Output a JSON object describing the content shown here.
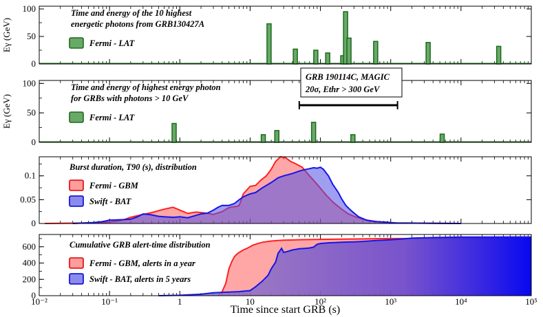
{
  "chart_data": {
    "type": "multi-panel",
    "shared_x": {
      "label": "Time since start GRB (s)",
      "scale": "log",
      "range": [
        0.01,
        100000
      ],
      "tick_labels": [
        "10⁻²",
        "10⁻¹",
        "1",
        "10",
        "10²",
        "10³",
        "10⁴",
        "10⁵"
      ]
    },
    "panels": [
      {
        "id": "p1",
        "type": "bar",
        "ylabel": "Eγ (GeV)",
        "ylim": [
          0,
          105
        ],
        "yticks": [
          0,
          50,
          100
        ],
        "title_lines": [
          "Time and energy of the 10 highest",
          "energetic photons from GRB130427A"
        ],
        "legend": [
          {
            "label": "Fermi - LAT",
            "color": "#6aa86a"
          }
        ],
        "bars": [
          {
            "t": 18.6,
            "e": 73
          },
          {
            "t": 44,
            "e": 27
          },
          {
            "t": 86,
            "e": 25
          },
          {
            "t": 127,
            "e": 20
          },
          {
            "t": 208,
            "e": 15
          },
          {
            "t": 228,
            "e": 95
          },
          {
            "t": 255,
            "e": 47
          },
          {
            "t": 611,
            "e": 41
          },
          {
            "t": 3410,
            "e": 39
          },
          {
            "t": 34400,
            "e": 32
          }
        ]
      },
      {
        "id": "p2",
        "type": "bar",
        "ylabel": "Eγ (GeV)",
        "ylim": [
          0,
          105
        ],
        "yticks": [
          0,
          50,
          100
        ],
        "title_lines": [
          "Time and energy of highest energy photon",
          "for GRBs with photons > 10 GeV"
        ],
        "legend": [
          {
            "label": "Fermi - LAT",
            "color": "#6aa86a"
          }
        ],
        "bars": [
          {
            "t": 0.83,
            "e": 32
          },
          {
            "t": 15.4,
            "e": 13
          },
          {
            "t": 24,
            "e": 20
          },
          {
            "t": 80,
            "e": 34
          },
          {
            "t": 290,
            "e": 13
          },
          {
            "t": 5400,
            "e": 14
          }
        ],
        "annotation": {
          "lines": [
            "GRB 190114C, MAGIC",
            "20σ, Ethr > 300 GeV"
          ],
          "range": [
            50,
            1250
          ],
          "e": 63
        }
      },
      {
        "id": "p3",
        "type": "area",
        "ylabel": "",
        "ylim": [
          0,
          0.14
        ],
        "yticks": [
          0,
          0.05,
          0.1
        ],
        "ytick_labels": [
          "0",
          "0.05",
          "0.1"
        ],
        "title": "Burst duration, T90 (s), distribution",
        "legend": [
          {
            "label": "Fermi - GBM",
            "color": "#ff4545"
          },
          {
            "label": "Swift - BAT",
            "color": "#4a4ae8"
          }
        ],
        "series": [
          {
            "name": "Fermi - GBM",
            "color": "#ff2020",
            "fill": "rgba(255,80,80,0.5)",
            "x": [
              0.012,
              0.05,
              0.08,
              0.1,
              0.13,
              0.16,
              0.2,
              0.28,
              0.4,
              0.6,
              0.8,
              1,
              1.3,
              1.7,
              2.3,
              3,
              4,
              4.8,
              5.5,
              6.5,
              7,
              8,
              10,
              12,
              14,
              17,
              20,
              23,
              27,
              32,
              38,
              45,
              55,
              70,
              90,
              120,
              150,
              200,
              250,
              300,
              400,
              500,
              800,
              1200,
              10000
            ],
            "y": [
              0,
              0.001,
              0.002,
              0.003,
              0.005,
              0.008,
              0.013,
              0.018,
              0.023,
              0.03,
              0.034,
              0.028,
              0.021,
              0.024,
              0.022,
              0.019,
              0.025,
              0.032,
              0.035,
              0.036,
              0.038,
              0.062,
              0.078,
              0.08,
              0.09,
              0.1,
              0.114,
              0.13,
              0.14,
              0.138,
              0.13,
              0.125,
              0.118,
              0.1,
              0.082,
              0.06,
              0.045,
              0.03,
              0.02,
              0.015,
              0.009,
              0.006,
              0.002,
              0.001,
              0
            ]
          },
          {
            "name": "Swift - BAT",
            "color": "#1515e6",
            "fill": "rgba(80,80,230,0.55)",
            "x": [
              0.03,
              0.06,
              0.08,
              0.1,
              0.15,
              0.2,
              0.25,
              0.3,
              0.35,
              0.4,
              0.5,
              0.6,
              0.8,
              1,
              1.3,
              1.7,
              2,
              2.5,
              3,
              3.5,
              4,
              5,
              6,
              7,
              8,
              10,
              12,
              15,
              20,
              25,
              30,
              40,
              50,
              60,
              70,
              80,
              90,
              100,
              110,
              130,
              150,
              180,
              200,
              230,
              260,
              300,
              350,
              450,
              600,
              800,
              1200,
              10000
            ],
            "y": [
              0,
              0.002,
              0.004,
              0.007,
              0.008,
              0.009,
              0.014,
              0.02,
              0.019,
              0.018,
              0.015,
              0.014,
              0.013,
              0.014,
              0.012,
              0.017,
              0.02,
              0.022,
              0.028,
              0.034,
              0.038,
              0.038,
              0.042,
              0.05,
              0.056,
              0.062,
              0.065,
              0.075,
              0.086,
              0.096,
              0.1,
              0.105,
              0.11,
              0.113,
              0.115,
              0.117,
              0.116,
              0.118,
              0.114,
              0.1,
              0.082,
              0.065,
              0.052,
              0.038,
              0.03,
              0.022,
              0.014,
              0.007,
              0.004,
              0.003,
              0.001,
              0
            ]
          }
        ]
      },
      {
        "id": "p4",
        "type": "area",
        "ylabel": "",
        "ylim": [
          0,
          750
        ],
        "yticks": [
          0,
          200,
          400,
          600
        ],
        "ytick_labels": [
          "0",
          "200",
          "400",
          "600"
        ],
        "title": "Cumulative GRB alert-time distribution",
        "legend": [
          {
            "label": "Fermi - GBM, alerts  in a year",
            "color": "#ff4545"
          },
          {
            "label": "Swift - BAT, alerts in 5 years",
            "color": "#4a4ae8"
          }
        ],
        "series": [
          {
            "name": "Fermi - GBM, alerts in a year",
            "color": "#ff2020",
            "fill": "rgba(255,80,80,0.5)",
            "x": [
              3.5,
              4,
              4.5,
              5,
              5.5,
              6,
              6.5,
              7,
              8,
              9,
              10,
              11,
              13,
              15,
              18,
              20,
              25,
              30,
              40,
              50,
              70,
              100,
              200,
              500,
              1000,
              100000
            ],
            "y": [
              0,
              50,
              150,
              330,
              420,
              480,
              510,
              530,
              560,
              580,
              600,
              620,
              640,
              655,
              665,
              670,
              676,
              680,
              683,
              686,
              688,
              690,
              693,
              697,
              700,
              700
            ]
          },
          {
            "name": "Swift - BAT, alerts in 5 years",
            "color": "#1515e6",
            "fill": "gradient",
            "x": [
              0.5,
              1,
              2,
              3,
              5,
              7,
              8,
              10,
              12,
              15,
              18,
              20,
              23,
              25,
              28,
              30,
              35,
              40,
              50,
              60,
              70,
              80,
              90,
              100,
              130,
              150,
              200,
              300,
              400,
              600,
              800,
              1000,
              1500,
              2000,
              3000,
              5000,
              10000,
              20000,
              50000,
              100000
            ],
            "y": [
              0,
              5,
              18,
              35,
              45,
              50,
              55,
              62,
              110,
              180,
              250,
              330,
              410,
              520,
              580,
              530,
              545,
              560,
              575,
              580,
              585,
              595,
              630,
              640,
              648,
              650,
              655,
              660,
              665,
              675,
              680,
              685,
              695,
              705,
              710,
              715,
              718,
              719,
              720,
              720
            ]
          }
        ]
      }
    ]
  }
}
